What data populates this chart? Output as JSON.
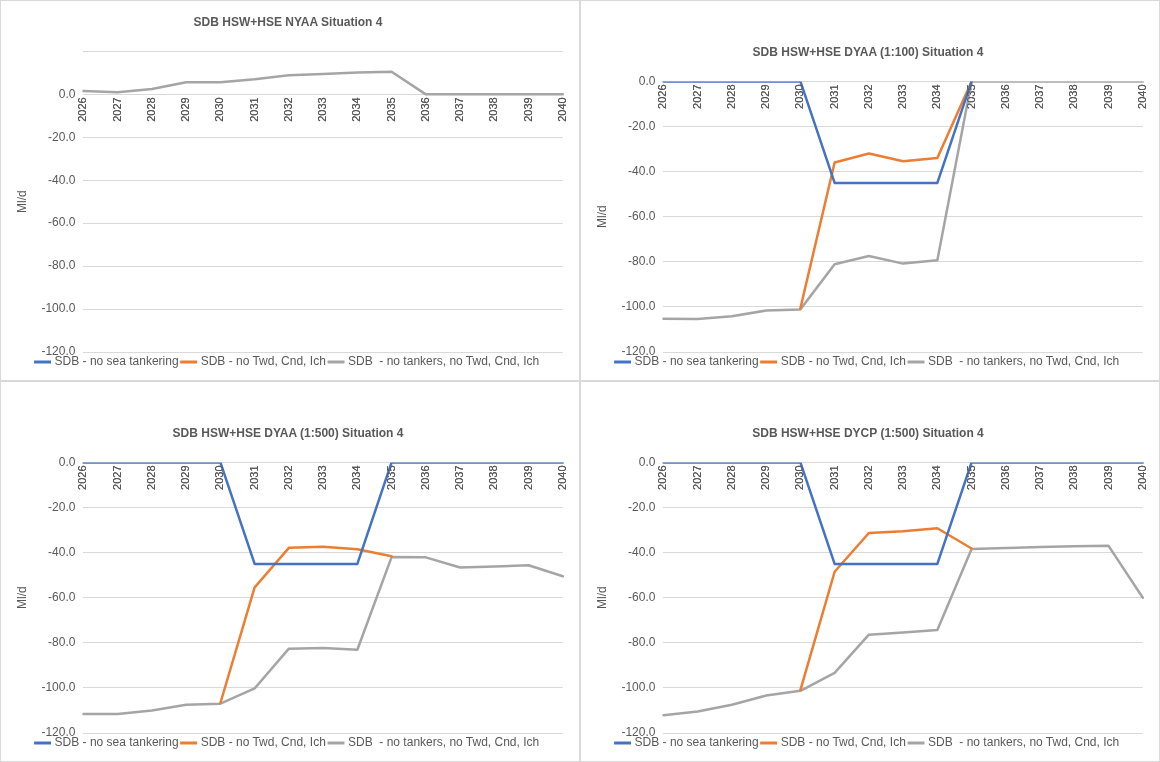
{
  "chart_data": [
    {
      "type": "line",
      "title": "SDB HSW+HSE NYAA Situation 4",
      "ylabel": "Ml/d",
      "categories": [
        "2026",
        "2027",
        "2028",
        "2029",
        "2030",
        "2031",
        "2032",
        "2033",
        "2034",
        "2035",
        "2036",
        "2037",
        "2038",
        "2039",
        "2040"
      ],
      "series": [
        {
          "name": "SDB - no sea tankering",
          "color": "#4472c4",
          "values": [
            null,
            null,
            null,
            null,
            null,
            null,
            null,
            null,
            null,
            null,
            null,
            null,
            null,
            null,
            null
          ]
        },
        {
          "name": "SDB - no Twd, Cnd, Ich",
          "color": "#ed7d31",
          "values": [
            null,
            null,
            null,
            null,
            null,
            null,
            null,
            null,
            null,
            null,
            null,
            null,
            null,
            null,
            null
          ]
        },
        {
          "name": "SDB  - no tankers, no Twd, Cnd, Ich",
          "color": "#a5a5a5",
          "values": [
            1.5,
            1.0,
            2.5,
            5.6,
            5.6,
            7.0,
            8.9,
            9.5,
            10.2,
            10.5,
            0,
            0,
            0,
            0,
            0
          ]
        }
      ],
      "ylim": [
        -120,
        20
      ],
      "yticks": [
        {
          "value": -120,
          "label": "-120.0"
        },
        {
          "value": -100,
          "label": "-100.0"
        },
        {
          "value": -80,
          "label": "-80.0"
        },
        {
          "value": -60,
          "label": "-60.0"
        },
        {
          "value": -40,
          "label": "-40.0"
        },
        {
          "value": -20,
          "label": "-20.0"
        },
        {
          "value": 0,
          "label": "0.0"
        },
        {
          "value": 20,
          "label": null
        }
      ],
      "grid": "y",
      "legend": "bottom",
      "line_style": "solid"
    },
    {
      "type": "line",
      "title": "SDB HSW+HSE DYAA (1:100) Situation 4",
      "ylabel": "Ml/d",
      "categories": [
        "2026",
        "2027",
        "2028",
        "2029",
        "2030",
        "2031",
        "2032",
        "2033",
        "2034",
        "2035",
        "2036",
        "2037",
        "2038",
        "2039",
        "2040"
      ],
      "series": [
        {
          "name": "SDB - no sea tankering",
          "color": "#4472c4",
          "values": [
            0,
            0,
            0,
            0,
            0,
            -45,
            -45,
            -45,
            -45,
            0,
            null,
            null,
            null,
            null,
            null
          ]
        },
        {
          "name": "SDB - no Twd, Cnd, Ich",
          "color": "#ed7d31",
          "values": [
            null,
            null,
            null,
            null,
            -100.6,
            -36,
            -32,
            -35.4,
            -34,
            0,
            null,
            null,
            null,
            null,
            null
          ]
        },
        {
          "name": "SDB  - no tankers, no Twd, Cnd, Ich",
          "color": "#a5a5a5",
          "values": [
            -105.2,
            -105.4,
            -104.1,
            -101.6,
            -101.1,
            -81.1,
            -77.4,
            -80.8,
            -79.3,
            0,
            0,
            0,
            0,
            0,
            0
          ]
        }
      ],
      "ylim": [
        -120,
        0
      ],
      "yticks": [
        {
          "value": -120,
          "label": "-120.0"
        },
        {
          "value": -100,
          "label": "-100.0"
        },
        {
          "value": -80,
          "label": "-80.0"
        },
        {
          "value": -60,
          "label": "-60.0"
        },
        {
          "value": -40,
          "label": "-40.0"
        },
        {
          "value": -20,
          "label": "-20.0"
        },
        {
          "value": 0,
          "label": "0.0"
        }
      ],
      "grid": "y",
      "legend": "bottom",
      "line_style": "solid"
    },
    {
      "type": "line",
      "title": "SDB HSW+HSE DYAA (1:500) Situation 4",
      "ylabel": "Ml/d",
      "categories": [
        "2026",
        "2027",
        "2028",
        "2029",
        "2030",
        "2031",
        "2032",
        "2033",
        "2034",
        "2035",
        "2036",
        "2037",
        "2038",
        "2039",
        "2040"
      ],
      "series": [
        {
          "name": "SDB - no sea tankering",
          "color": "#4472c4",
          "values": [
            0,
            0,
            0,
            0,
            0,
            -45,
            -45,
            -45,
            -45,
            0,
            0,
            0,
            0,
            0,
            0
          ]
        },
        {
          "name": "SDB - no Twd, Cnd, Ich",
          "color": "#ed7d31",
          "values": [
            null,
            null,
            null,
            null,
            -106.7,
            -55.4,
            -37.9,
            -37.4,
            -38.5,
            -41.6,
            null,
            null,
            null,
            null,
            null
          ]
        },
        {
          "name": "SDB  - no tankers, no Twd, Cnd, Ich",
          "color": "#a5a5a5",
          "values": [
            -111.6,
            -111.6,
            -110,
            -107.5,
            -107,
            -100.2,
            -82.6,
            -82.3,
            -83.1,
            -42,
            -42.1,
            -46.6,
            -46.2,
            -45.6,
            -50.5
          ]
        }
      ],
      "ylim": [
        -120,
        0
      ],
      "yticks": [
        {
          "value": -120,
          "label": "-120.0"
        },
        {
          "value": -100,
          "label": "-100.0"
        },
        {
          "value": -80,
          "label": "-80.0"
        },
        {
          "value": -60,
          "label": "-60.0"
        },
        {
          "value": -40,
          "label": "-40.0"
        },
        {
          "value": -20,
          "label": "-20.0"
        },
        {
          "value": 0,
          "label": "0.0"
        }
      ],
      "grid": "y",
      "legend": "bottom",
      "line_style": "solid"
    },
    {
      "type": "line",
      "title": "SDB HSW+HSE DYCP (1:500) Situation 4",
      "ylabel": "Ml/d",
      "categories": [
        "2026",
        "2027",
        "2028",
        "2029",
        "2030",
        "2031",
        "2032",
        "2033",
        "2034",
        "2035",
        "2036",
        "2037",
        "2038",
        "2039",
        "2040"
      ],
      "series": [
        {
          "name": "SDB - no sea tankering",
          "color": "#4472c4",
          "values": [
            0,
            0,
            0,
            0,
            0,
            -45,
            -45,
            -45,
            -45,
            0,
            0,
            0,
            0,
            0,
            0
          ]
        },
        {
          "name": "SDB - no Twd, Cnd, Ich",
          "color": "#ed7d31",
          "values": [
            null,
            null,
            null,
            null,
            -101,
            -48.5,
            -31.3,
            -30.5,
            -29.2,
            -38.2,
            null,
            null,
            null,
            null,
            null
          ]
        },
        {
          "name": "SDB  - no tankers, no Twd, Cnd, Ich",
          "color": "#a5a5a5",
          "values": [
            -112.1,
            -110.5,
            -107.5,
            -103.4,
            -101.3,
            -93.3,
            -76.4,
            -75.4,
            -74.3,
            -38.4,
            -38,
            -37.5,
            -37.2,
            -37,
            -60
          ]
        }
      ],
      "ylim": [
        -120,
        0
      ],
      "yticks": [
        {
          "value": -120,
          "label": "-120.0"
        },
        {
          "value": -100,
          "label": "-100.0"
        },
        {
          "value": -80,
          "label": "-80.0"
        },
        {
          "value": -60,
          "label": "-60.0"
        },
        {
          "value": -40,
          "label": "-40.0"
        },
        {
          "value": -20,
          "label": "-20.0"
        },
        {
          "value": 0,
          "label": "0.0"
        }
      ],
      "grid": "y",
      "legend": "bottom",
      "line_style": "solid"
    }
  ]
}
